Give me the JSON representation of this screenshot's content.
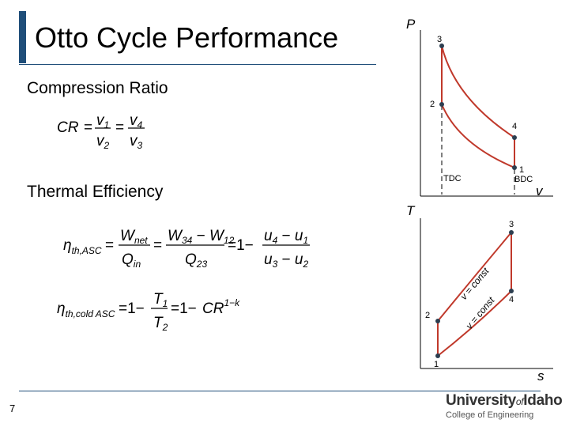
{
  "slide": {
    "title": "Otto Cycle Performance",
    "page_number": "7"
  },
  "headings": {
    "compression_ratio": "Compression Ratio",
    "thermal_efficiency": "Thermal Efficiency"
  },
  "logo": {
    "main_before": "University",
    "main_of": "of",
    "main_after": "Idaho",
    "sub": "College of Engineering"
  },
  "pv_diagram": {
    "y_axis": "P",
    "x_axis": "v",
    "state_labels": [
      "1",
      "2",
      "3",
      "4"
    ],
    "tdc_label": "TDC",
    "bdc_label": "BDC"
  },
  "ts_diagram": {
    "y_axis": "T",
    "x_axis": "s",
    "state_labels": [
      "1",
      "2",
      "3",
      "4"
    ],
    "isochore_label": "v = const"
  },
  "colors": {
    "accent": "#1f4e79",
    "cycle_line": "#c0392b",
    "state_point": "#2c3e50"
  }
}
